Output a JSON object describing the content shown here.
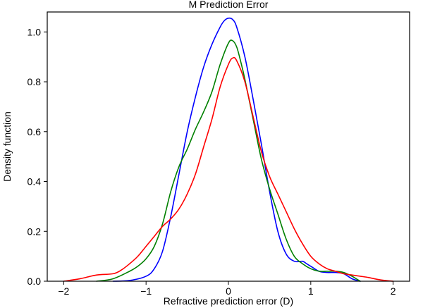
{
  "chart_data": {
    "type": "line",
    "title": "M Prediction Error",
    "xlabel": "Refractive prediction error (D)",
    "ylabel": "Density function",
    "xlim": [
      -2.2,
      2.2
    ],
    "ylim": [
      0,
      1.08
    ],
    "xticks": [
      -2,
      -1,
      0,
      1,
      2
    ],
    "yticks": [
      0.0,
      0.2,
      0.4,
      0.6,
      0.8,
      1.0
    ],
    "xtick_labels": [
      "−2",
      "−1",
      "0",
      "1",
      "2"
    ],
    "ytick_labels": [
      "0.0",
      "0.2",
      "0.4",
      "0.6",
      "0.8",
      "1.0"
    ],
    "grid": false,
    "legend": "none",
    "series": [
      {
        "color": "#0000ff",
        "x": [
          -1.4,
          -1.2,
          -1.0,
          -0.9,
          -0.8,
          -0.7,
          -0.6,
          -0.5,
          -0.4,
          -0.3,
          -0.2,
          -0.1,
          -0.05,
          0.0,
          0.05,
          0.1,
          0.2,
          0.3,
          0.4,
          0.5,
          0.6,
          0.7,
          0.8,
          0.9,
          0.95,
          1.0,
          1.1,
          1.2,
          1.3,
          1.4,
          1.5,
          1.6
        ],
        "y": [
          0.0,
          0.003,
          0.02,
          0.05,
          0.12,
          0.26,
          0.43,
          0.6,
          0.74,
          0.86,
          0.95,
          1.02,
          1.045,
          1.055,
          1.05,
          1.02,
          0.9,
          0.73,
          0.55,
          0.36,
          0.2,
          0.11,
          0.08,
          0.08,
          0.07,
          0.06,
          0.04,
          0.035,
          0.035,
          0.03,
          0.01,
          0.0
        ]
      },
      {
        "color": "#008000",
        "x": [
          -1.6,
          -1.4,
          -1.2,
          -1.1,
          -1.0,
          -0.9,
          -0.8,
          -0.7,
          -0.6,
          -0.5,
          -0.4,
          -0.3,
          -0.2,
          -0.1,
          0.0,
          0.05,
          0.1,
          0.15,
          0.2,
          0.3,
          0.4,
          0.5,
          0.6,
          0.7,
          0.8,
          0.9,
          1.0,
          1.1,
          1.2,
          1.3,
          1.4,
          1.5,
          1.6
        ],
        "y": [
          0.0,
          0.01,
          0.04,
          0.06,
          0.09,
          0.14,
          0.23,
          0.36,
          0.46,
          0.53,
          0.61,
          0.68,
          0.76,
          0.87,
          0.955,
          0.965,
          0.94,
          0.88,
          0.81,
          0.65,
          0.49,
          0.37,
          0.27,
          0.17,
          0.1,
          0.07,
          0.05,
          0.04,
          0.04,
          0.04,
          0.035,
          0.02,
          0.0
        ]
      },
      {
        "color": "#ff0000",
        "x": [
          -2.0,
          -1.8,
          -1.6,
          -1.4,
          -1.3,
          -1.2,
          -1.1,
          -1.0,
          -0.9,
          -0.8,
          -0.7,
          -0.6,
          -0.5,
          -0.4,
          -0.3,
          -0.2,
          -0.1,
          0.0,
          0.05,
          0.1,
          0.2,
          0.3,
          0.4,
          0.5,
          0.6,
          0.7,
          0.8,
          0.9,
          1.0,
          1.1,
          1.2,
          1.3,
          1.4,
          1.5,
          1.6,
          1.7,
          1.8,
          1.9,
          2.0
        ],
        "y": [
          0.0,
          0.01,
          0.025,
          0.03,
          0.045,
          0.07,
          0.1,
          0.14,
          0.18,
          0.22,
          0.25,
          0.29,
          0.35,
          0.43,
          0.54,
          0.65,
          0.78,
          0.87,
          0.895,
          0.885,
          0.8,
          0.66,
          0.52,
          0.42,
          0.35,
          0.28,
          0.21,
          0.15,
          0.1,
          0.07,
          0.05,
          0.04,
          0.03,
          0.025,
          0.02,
          0.015,
          0.008,
          0.003,
          0.0
        ]
      }
    ]
  }
}
